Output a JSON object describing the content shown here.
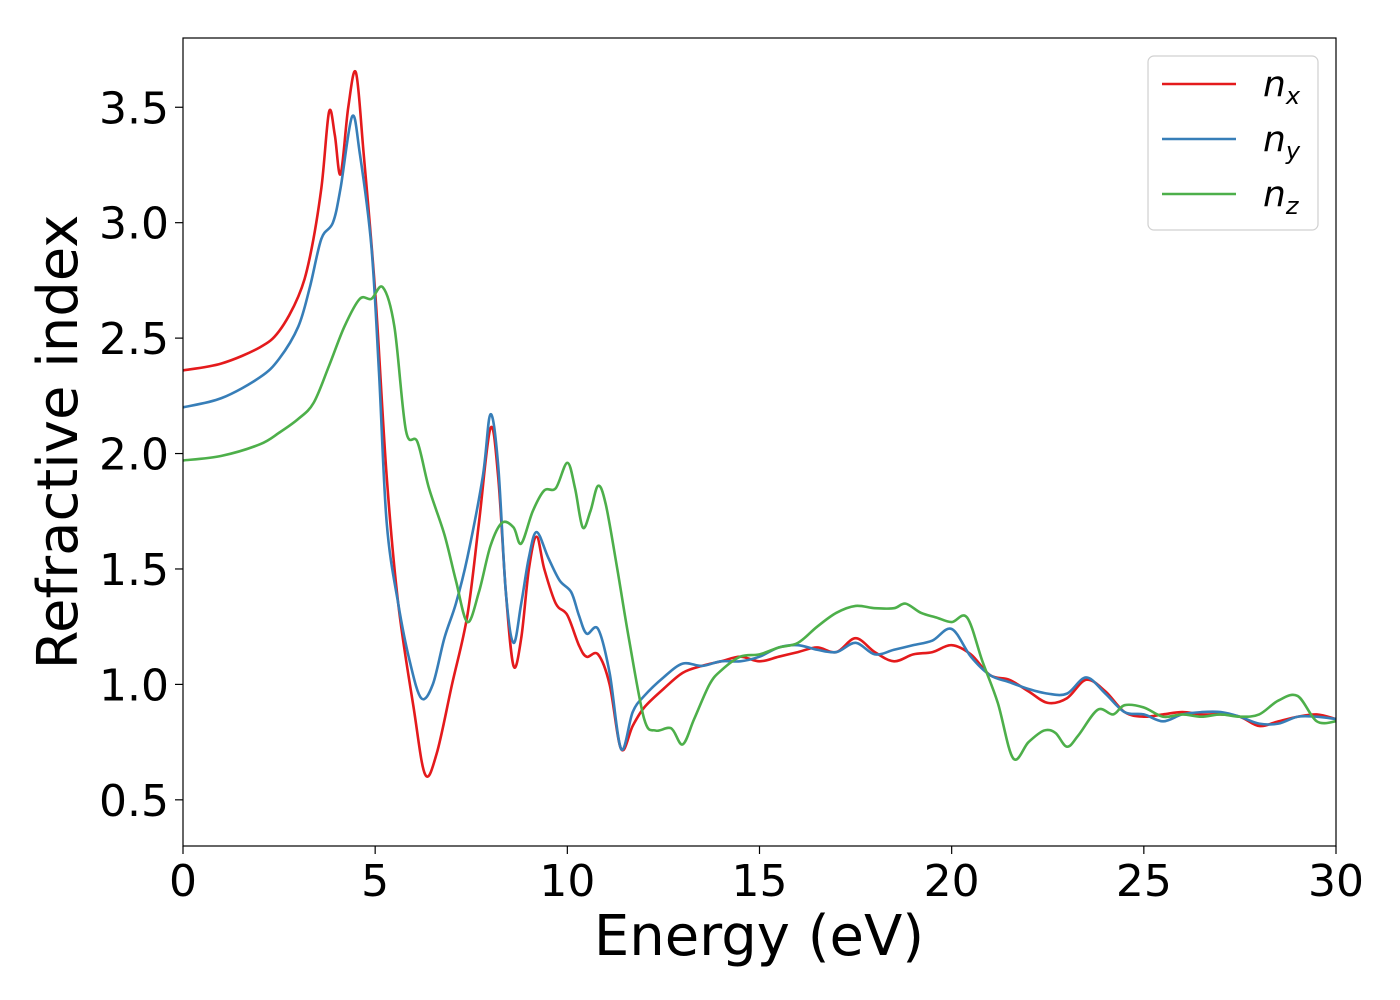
{
  "chart_data": {
    "type": "line",
    "xlabel": "Energy (eV)",
    "ylabel": "Refractive index",
    "xlim": [
      0,
      30
    ],
    "ylim": [
      0.3,
      3.8
    ],
    "xticks": [
      0,
      5,
      10,
      15,
      20,
      25,
      30
    ],
    "xtick_labels": [
      "0",
      "5",
      "10",
      "15",
      "20",
      "25",
      "30"
    ],
    "yticks": [
      0.5,
      1.0,
      1.5,
      2.0,
      2.5,
      3.0,
      3.5
    ],
    "ytick_labels": [
      "0.5",
      "1.0",
      "1.5",
      "2.0",
      "2.5",
      "3.0",
      "3.5"
    ],
    "grid": false,
    "legend_position": "top-right",
    "series": [
      {
        "name": "n",
        "subscript": "x",
        "color": "#e41a1c",
        "points": [
          [
            0,
            2.36
          ],
          [
            1,
            2.39
          ],
          [
            2,
            2.46
          ],
          [
            2.5,
            2.53
          ],
          [
            3,
            2.68
          ],
          [
            3.3,
            2.85
          ],
          [
            3.6,
            3.15
          ],
          [
            3.8,
            3.48
          ],
          [
            3.95,
            3.38
          ],
          [
            4.1,
            3.21
          ],
          [
            4.3,
            3.5
          ],
          [
            4.5,
            3.65
          ],
          [
            4.7,
            3.3
          ],
          [
            5.0,
            2.7
          ],
          [
            5.3,
            1.9
          ],
          [
            5.6,
            1.35
          ],
          [
            6.0,
            0.9
          ],
          [
            6.3,
            0.61
          ],
          [
            6.6,
            0.7
          ],
          [
            7.0,
            1.0
          ],
          [
            7.4,
            1.3
          ],
          [
            7.7,
            1.7
          ],
          [
            8.0,
            2.11
          ],
          [
            8.2,
            1.9
          ],
          [
            8.4,
            1.4
          ],
          [
            8.6,
            1.08
          ],
          [
            8.8,
            1.2
          ],
          [
            9.0,
            1.5
          ],
          [
            9.2,
            1.64
          ],
          [
            9.4,
            1.5
          ],
          [
            9.7,
            1.35
          ],
          [
            10.0,
            1.3
          ],
          [
            10.3,
            1.17
          ],
          [
            10.5,
            1.12
          ],
          [
            10.8,
            1.13
          ],
          [
            11.1,
            1.0
          ],
          [
            11.4,
            0.72
          ],
          [
            11.7,
            0.82
          ],
          [
            12.0,
            0.9
          ],
          [
            12.5,
            0.98
          ],
          [
            13.0,
            1.05
          ],
          [
            13.5,
            1.08
          ],
          [
            14.0,
            1.1
          ],
          [
            14.5,
            1.12
          ],
          [
            15.0,
            1.1
          ],
          [
            15.5,
            1.12
          ],
          [
            16.0,
            1.14
          ],
          [
            16.5,
            1.16
          ],
          [
            17.0,
            1.14
          ],
          [
            17.5,
            1.2
          ],
          [
            18.0,
            1.14
          ],
          [
            18.5,
            1.1
          ],
          [
            19.0,
            1.13
          ],
          [
            19.5,
            1.14
          ],
          [
            20.0,
            1.17
          ],
          [
            20.5,
            1.13
          ],
          [
            21.0,
            1.04
          ],
          [
            21.5,
            1.02
          ],
          [
            22.0,
            0.97
          ],
          [
            22.5,
            0.92
          ],
          [
            23.0,
            0.94
          ],
          [
            23.5,
            1.02
          ],
          [
            24.0,
            0.97
          ],
          [
            24.5,
            0.88
          ],
          [
            25.0,
            0.86
          ],
          [
            25.5,
            0.87
          ],
          [
            26.0,
            0.88
          ],
          [
            26.5,
            0.87
          ],
          [
            27.0,
            0.87
          ],
          [
            27.5,
            0.86
          ],
          [
            28.0,
            0.82
          ],
          [
            28.5,
            0.84
          ],
          [
            29.0,
            0.86
          ],
          [
            29.5,
            0.87
          ],
          [
            30,
            0.85
          ]
        ]
      },
      {
        "name": "n",
        "subscript": "y",
        "color": "#377eb8",
        "points": [
          [
            0,
            2.2
          ],
          [
            1,
            2.24
          ],
          [
            2,
            2.33
          ],
          [
            2.5,
            2.41
          ],
          [
            3,
            2.55
          ],
          [
            3.3,
            2.72
          ],
          [
            3.6,
            2.93
          ],
          [
            3.9,
            3.0
          ],
          [
            4.1,
            3.15
          ],
          [
            4.4,
            3.46
          ],
          [
            4.6,
            3.3
          ],
          [
            4.9,
            2.9
          ],
          [
            5.1,
            2.35
          ],
          [
            5.3,
            1.7
          ],
          [
            5.6,
            1.35
          ],
          [
            5.9,
            1.1
          ],
          [
            6.2,
            0.94
          ],
          [
            6.5,
            1.0
          ],
          [
            6.8,
            1.2
          ],
          [
            7.1,
            1.35
          ],
          [
            7.4,
            1.55
          ],
          [
            7.8,
            1.9
          ],
          [
            8.0,
            2.17
          ],
          [
            8.2,
            1.95
          ],
          [
            8.4,
            1.4
          ],
          [
            8.6,
            1.18
          ],
          [
            8.8,
            1.35
          ],
          [
            9.0,
            1.55
          ],
          [
            9.2,
            1.66
          ],
          [
            9.5,
            1.55
          ],
          [
            9.8,
            1.45
          ],
          [
            10.1,
            1.4
          ],
          [
            10.3,
            1.3
          ],
          [
            10.5,
            1.22
          ],
          [
            10.8,
            1.24
          ],
          [
            11.1,
            1.05
          ],
          [
            11.4,
            0.72
          ],
          [
            11.7,
            0.88
          ],
          [
            12.0,
            0.95
          ],
          [
            12.5,
            1.03
          ],
          [
            13.0,
            1.09
          ],
          [
            13.5,
            1.08
          ],
          [
            14.0,
            1.1
          ],
          [
            14.5,
            1.1
          ],
          [
            15.0,
            1.12
          ],
          [
            15.5,
            1.16
          ],
          [
            16.0,
            1.17
          ],
          [
            16.5,
            1.15
          ],
          [
            17.0,
            1.14
          ],
          [
            17.5,
            1.18
          ],
          [
            18.0,
            1.13
          ],
          [
            18.5,
            1.15
          ],
          [
            19.0,
            1.17
          ],
          [
            19.5,
            1.19
          ],
          [
            20.0,
            1.24
          ],
          [
            20.5,
            1.12
          ],
          [
            21.0,
            1.04
          ],
          [
            21.5,
            1.01
          ],
          [
            22.0,
            0.98
          ],
          [
            22.5,
            0.96
          ],
          [
            23.0,
            0.96
          ],
          [
            23.5,
            1.03
          ],
          [
            24.0,
            0.96
          ],
          [
            24.5,
            0.88
          ],
          [
            25.0,
            0.87
          ],
          [
            25.5,
            0.84
          ],
          [
            26.0,
            0.87
          ],
          [
            26.5,
            0.88
          ],
          [
            27.0,
            0.88
          ],
          [
            27.5,
            0.86
          ],
          [
            28.0,
            0.83
          ],
          [
            28.5,
            0.83
          ],
          [
            29.0,
            0.86
          ],
          [
            29.5,
            0.86
          ],
          [
            30,
            0.85
          ]
        ]
      },
      {
        "name": "n",
        "subscript": "z",
        "color": "#4daf4a",
        "points": [
          [
            0,
            1.97
          ],
          [
            1,
            1.99
          ],
          [
            2,
            2.04
          ],
          [
            2.5,
            2.09
          ],
          [
            3,
            2.15
          ],
          [
            3.4,
            2.22
          ],
          [
            3.8,
            2.38
          ],
          [
            4.2,
            2.55
          ],
          [
            4.6,
            2.67
          ],
          [
            4.9,
            2.67
          ],
          [
            5.2,
            2.72
          ],
          [
            5.5,
            2.55
          ],
          [
            5.8,
            2.1
          ],
          [
            6.1,
            2.05
          ],
          [
            6.4,
            1.85
          ],
          [
            6.8,
            1.65
          ],
          [
            7.1,
            1.45
          ],
          [
            7.4,
            1.27
          ],
          [
            7.7,
            1.4
          ],
          [
            8.0,
            1.6
          ],
          [
            8.3,
            1.7
          ],
          [
            8.6,
            1.68
          ],
          [
            8.8,
            1.61
          ],
          [
            9.1,
            1.75
          ],
          [
            9.4,
            1.84
          ],
          [
            9.7,
            1.85
          ],
          [
            10.0,
            1.96
          ],
          [
            10.2,
            1.85
          ],
          [
            10.4,
            1.68
          ],
          [
            10.6,
            1.75
          ],
          [
            10.8,
            1.86
          ],
          [
            11.0,
            1.78
          ],
          [
            11.3,
            1.5
          ],
          [
            11.6,
            1.2
          ],
          [
            12.0,
            0.85
          ],
          [
            12.3,
            0.8
          ],
          [
            12.7,
            0.81
          ],
          [
            13.0,
            0.74
          ],
          [
            13.3,
            0.85
          ],
          [
            13.7,
            1.0
          ],
          [
            14.0,
            1.06
          ],
          [
            14.5,
            1.12
          ],
          [
            15.0,
            1.13
          ],
          [
            15.5,
            1.16
          ],
          [
            16.0,
            1.18
          ],
          [
            16.5,
            1.25
          ],
          [
            17.0,
            1.31
          ],
          [
            17.5,
            1.34
          ],
          [
            18.0,
            1.33
          ],
          [
            18.5,
            1.33
          ],
          [
            18.8,
            1.35
          ],
          [
            19.2,
            1.31
          ],
          [
            19.6,
            1.29
          ],
          [
            20.0,
            1.27
          ],
          [
            20.4,
            1.29
          ],
          [
            20.8,
            1.1
          ],
          [
            21.2,
            0.92
          ],
          [
            21.6,
            0.68
          ],
          [
            22.0,
            0.75
          ],
          [
            22.4,
            0.8
          ],
          [
            22.7,
            0.79
          ],
          [
            23.0,
            0.73
          ],
          [
            23.3,
            0.78
          ],
          [
            23.8,
            0.89
          ],
          [
            24.2,
            0.87
          ],
          [
            24.5,
            0.91
          ],
          [
            25.0,
            0.9
          ],
          [
            25.5,
            0.86
          ],
          [
            26.0,
            0.87
          ],
          [
            26.5,
            0.86
          ],
          [
            27.0,
            0.87
          ],
          [
            27.5,
            0.86
          ],
          [
            28.0,
            0.87
          ],
          [
            28.5,
            0.93
          ],
          [
            29.0,
            0.95
          ],
          [
            29.5,
            0.84
          ],
          [
            30,
            0.84
          ]
        ]
      }
    ]
  }
}
